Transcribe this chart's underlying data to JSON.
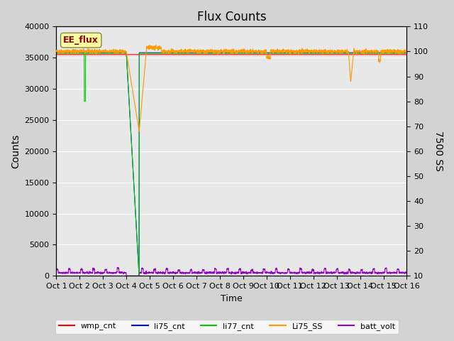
{
  "title": "Flux Counts",
  "xlabel": "Time",
  "ylabel_left": "Counts",
  "ylabel_right": "7500 SS",
  "annotation_text": "EE_flux",
  "ylim_left": [
    0,
    40000
  ],
  "ylim_right": [
    10,
    110
  ],
  "yticks_left": [
    0,
    5000,
    10000,
    15000,
    20000,
    25000,
    30000,
    35000,
    40000
  ],
  "yticks_right": [
    10,
    20,
    30,
    40,
    50,
    60,
    70,
    80,
    90,
    100,
    110
  ],
  "xtick_positions": [
    0,
    1,
    2,
    3,
    4,
    5,
    6,
    7,
    8,
    9,
    10,
    11,
    12,
    13,
    14,
    15
  ],
  "xtick_labels": [
    "Oct 1",
    "Oct 2",
    "Oct 3",
    "Oct 4",
    "Oct 5",
    "Oct 6",
    "Oct 7",
    "Oct 8",
    "Oct 9",
    "Oct 10",
    "Oct 11",
    "Oct 12",
    "Oct 13",
    "Oct 14",
    "Oct 15",
    "Oct 16"
  ],
  "n_days": 16,
  "colors": {
    "wmp_cnt": "#ff0000",
    "li75_cnt": "#0000ff",
    "li77_cnt": "#00cc00",
    "Li75_SS": "#ff9900",
    "batt_volt": "#9900cc"
  },
  "legend_labels": [
    "wmp_cnt",
    "li75_cnt",
    "li77_cnt",
    "Li75_SS",
    "batt_volt"
  ],
  "background_color": "#d3d3d3",
  "plot_background": "#e8e8e8",
  "grid_color": "#ffffff"
}
